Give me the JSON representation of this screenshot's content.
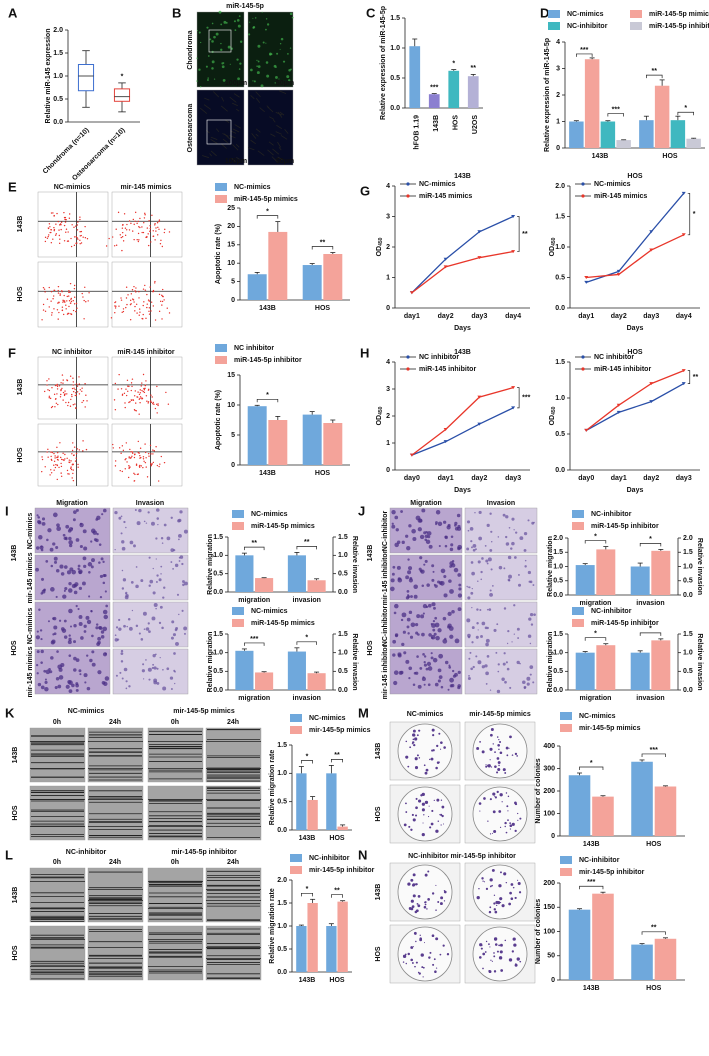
{
  "figure": {
    "panel_labels": [
      "A",
      "B",
      "C",
      "D",
      "E",
      "F",
      "G",
      "H",
      "I",
      "J",
      "K",
      "L",
      "M",
      "N"
    ],
    "image_labels": [
      "miR-145-5p",
      "Chondroma",
      "Osteosarcoma",
      "100μm",
      "50μm",
      "100μm",
      "50μm",
      "NC-mimics",
      "mir-145 mimics",
      "143B",
      "HOS",
      "NC inhibitor",
      "miR-145 inhibitor",
      "143B",
      "HOS",
      "Migration",
      "Invasion",
      "NC-mimics",
      "mir-145 mimics",
      "NC-mimics",
      "mir-145 mimics",
      "143B",
      "HOS",
      "Migration",
      "Invasion",
      "NC-inhibitor",
      "mir-145 inhibitor",
      "NC-inhibitor",
      "mir-145 inhibitor",
      "143B",
      "HOS",
      "NC-mimics",
      "mir-145-5p mimics",
      "0h",
      "24h",
      "0h",
      "24h",
      "143B",
      "HOS",
      "NC-inhibitor",
      "mir-145-5p inhibitor",
      "0h",
      "24h",
      "0h",
      "24h",
      "143B",
      "HOS",
      "NC-mimics",
      "mir-145-5p mimics",
      "143B",
      "HOS",
      "NC-inhibitor mir-145-5p inhibitor",
      "143B",
      "HOS"
    ]
  },
  "chart_data": [
    {
      "type": "box",
      "ylabel": "Relative miR-145 expression",
      "categories": [
        "Chondroma (n=10)",
        "Osteosarcoma (n=10)"
      ],
      "min": [
        0.32,
        0.22
      ],
      "q1": [
        0.68,
        0.45
      ],
      "median": [
        1.0,
        0.55
      ],
      "q3": [
        1.25,
        0.72
      ],
      "max": [
        1.55,
        0.85
      ],
      "colors": [
        "#3d6fcf",
        "#e3433b"
      ],
      "ylim": [
        0,
        2
      ],
      "yticks": [
        {
          "value": 0,
          "label": "0.0"
        },
        {
          "value": 0.5,
          "label": "0.5"
        },
        {
          "value": 1,
          "label": "1.0"
        },
        {
          "value": 1.5,
          "label": "1.5"
        },
        {
          "value": 2,
          "label": "2.0"
        }
      ],
      "annotations": [
        "*"
      ]
    },
    {
      "type": "bar",
      "ylabel": "Relative expression of miR-145-5p",
      "categories": [
        "hFOB 1.19",
        "143B",
        "HOS",
        "U2OS"
      ],
      "values": [
        1.03,
        0.23,
        0.62,
        0.53
      ],
      "errors": [
        0.12,
        0.01,
        0.02,
        0.03
      ],
      "colors": [
        "#6fa8dc",
        "#8b7fd0",
        "#3fb8c0",
        "#b4b1d6"
      ],
      "ylim": [
        0,
        1.5
      ],
      "yticks": [
        {
          "value": 0,
          "label": "0.0"
        },
        {
          "value": 0.5,
          "label": "0.5"
        },
        {
          "value": 1,
          "label": "1.0"
        },
        {
          "value": 1.5,
          "label": "1.5"
        }
      ],
      "annotations": [
        "***",
        "*",
        "**"
      ]
    },
    {
      "type": "bar",
      "ylabel": "Relative expression of miR-145-5p",
      "categories": [
        "143B",
        "HOS"
      ],
      "series": [
        {
          "name": "NC-mimics",
          "color": "#6fa8dc",
          "values": [
            1.0,
            1.05
          ],
          "errors": [
            0.03,
            0.15
          ]
        },
        {
          "name": "miR-145-5p mimics",
          "color": "#f4a39a",
          "values": [
            3.35,
            2.35
          ],
          "errors": [
            0.05,
            0.22
          ]
        },
        {
          "name": "NC-inhibitor",
          "color": "#3fb8c0",
          "values": [
            1.0,
            1.05
          ],
          "errors": [
            0.03,
            0.15
          ]
        },
        {
          "name": "miR-145-5p inhibitor",
          "color": "#c9c9d6",
          "values": [
            0.3,
            0.35
          ],
          "errors": [
            0.01,
            0.02
          ]
        }
      ],
      "ylim": [
        0,
        4
      ],
      "yticks": [
        0,
        1,
        2,
        3,
        4
      ],
      "annotations": [
        "***",
        "***",
        "**",
        "*"
      ]
    },
    {
      "type": "bar",
      "ylabel": "Apoptotic rate (%)",
      "categories": [
        "143B",
        "HOS"
      ],
      "series": [
        {
          "name": "NC-mimics",
          "color": "#6fa8dc",
          "values": [
            7.0,
            9.5
          ],
          "errors": [
            0.5,
            0.4
          ]
        },
        {
          "name": "miR-145-5p mimics",
          "color": "#f4a39a",
          "values": [
            18.5,
            12.5
          ],
          "errors": [
            2.8,
            0.4
          ]
        }
      ],
      "ylim": [
        0,
        25
      ],
      "yticks": [
        0,
        5,
        10,
        15,
        20,
        25
      ],
      "annotations": [
        "*",
        "**"
      ]
    },
    {
      "type": "bar",
      "ylabel": "Apoptotic rate (%)",
      "categories": [
        "143B",
        "HOS"
      ],
      "series": [
        {
          "name": "NC inhibitor",
          "color": "#6fa8dc",
          "values": [
            9.8,
            8.4
          ],
          "errors": [
            0.15,
            0.5
          ]
        },
        {
          "name": "miR-145-5p inhibitor",
          "color": "#f4a39a",
          "values": [
            7.5,
            7.0
          ],
          "errors": [
            0.6,
            0.5
          ]
        }
      ],
      "ylim": [
        0,
        15
      ],
      "yticks": [
        0,
        5,
        10,
        15
      ],
      "annotations": [
        "*"
      ]
    },
    {
      "type": "line",
      "title": "143B",
      "xlabel": "Days",
      "ylabel": "OD",
      "ylabel_sub": "450",
      "categories": [
        "day1",
        "day2",
        "day3",
        "day4"
      ],
      "series": [
        {
          "name": "NC-mimics",
          "color": "#2a4fa8",
          "values": [
            0.5,
            1.6,
            2.5,
            3.0
          ]
        },
        {
          "name": "miR-145 mimics",
          "color": "#e8362a",
          "values": [
            0.5,
            1.35,
            1.65,
            1.85
          ]
        }
      ],
      "ylim": [
        0,
        4
      ],
      "yticks": [
        0,
        1,
        2,
        3,
        4
      ],
      "annotations": [
        "**"
      ]
    },
    {
      "type": "line",
      "title": "HOS",
      "xlabel": "Days",
      "ylabel": "OD",
      "ylabel_sub": "450",
      "categories": [
        "day1",
        "day2",
        "day3",
        "day4"
      ],
      "series": [
        {
          "name": "NC-mimics",
          "color": "#2a4fa8",
          "values": [
            0.42,
            0.6,
            1.25,
            1.88
          ]
        },
        {
          "name": "miR-145 mimics",
          "color": "#e8362a",
          "values": [
            0.5,
            0.55,
            0.95,
            1.2
          ]
        }
      ],
      "ylim": [
        0,
        2
      ],
      "yticks": [
        {
          "value": 0,
          "label": "0.0"
        },
        {
          "value": 0.5,
          "label": "0.5"
        },
        {
          "value": 1,
          "label": "1.0"
        },
        {
          "value": 1.5,
          "label": "1.5"
        },
        {
          "value": 2,
          "label": "2.0"
        }
      ],
      "annotations": [
        "*"
      ]
    },
    {
      "type": "line",
      "title": "143B",
      "xlabel": "Days",
      "ylabel": "OD",
      "ylabel_sub": "450",
      "categories": [
        "day0",
        "day1",
        "day2",
        "day3"
      ],
      "series": [
        {
          "name": "NC inhibitor",
          "color": "#2a4fa8",
          "values": [
            0.55,
            1.05,
            1.7,
            2.3
          ]
        },
        {
          "name": "miR-145 inhibitor",
          "color": "#e8362a",
          "values": [
            0.55,
            1.5,
            2.7,
            3.05
          ]
        }
      ],
      "ylim": [
        0,
        4
      ],
      "yticks": [
        0,
        1,
        2,
        3,
        4
      ],
      "annotations": [
        "***"
      ]
    },
    {
      "type": "line",
      "title": "HOS",
      "xlabel": "Days",
      "ylabel": "OD",
      "ylabel_sub": "450",
      "categories": [
        "day0",
        "day1",
        "day2",
        "day3"
      ],
      "series": [
        {
          "name": "NC inhibitor",
          "color": "#2a4fa8",
          "values": [
            0.55,
            0.8,
            0.95,
            1.2
          ]
        },
        {
          "name": "miR-145 inhibitor",
          "color": "#e8362a",
          "values": [
            0.55,
            0.9,
            1.2,
            1.38
          ]
        }
      ],
      "ylim": [
        0,
        1.5
      ],
      "yticks": [
        {
          "value": 0,
          "label": "0.0"
        },
        {
          "value": 0.5,
          "label": "0.5"
        },
        {
          "value": 1,
          "label": "1.0"
        },
        {
          "value": 1.5,
          "label": "1.5"
        }
      ],
      "annotations": [
        "**"
      ]
    },
    {
      "type": "bar",
      "ylabel": "Relative migration",
      "y2label": "Relative invasion",
      "categories": [
        "migration",
        "invasion"
      ],
      "series": [
        {
          "name": "NC-mimics",
          "color": "#6fa8dc",
          "values": [
            1.0,
            1.0
          ],
          "errors": [
            0.06,
            0.08
          ]
        },
        {
          "name": "miR-145-5p mimics",
          "color": "#f4a39a",
          "values": [
            0.38,
            0.32
          ],
          "errors": [
            0.01,
            0.04
          ]
        }
      ],
      "ylim": [
        0,
        1.5
      ],
      "yticks": [
        {
          "value": 0,
          "label": "0.0"
        },
        {
          "value": 0.5,
          "label": "0.5"
        },
        {
          "value": 1,
          "label": "1.0"
        },
        {
          "value": 1.5,
          "label": "1.5"
        }
      ],
      "y2lim": [
        0,
        1.5
      ],
      "y2ticks": [
        {
          "value": 0,
          "label": "0.0"
        },
        {
          "value": 0.5,
          "label": "0.5"
        },
        {
          "value": 1,
          "label": "1.0"
        },
        {
          "value": 1.5,
          "label": "1.5"
        }
      ],
      "annotations": [
        "**",
        "**"
      ]
    },
    {
      "type": "bar",
      "ylabel": "Relative migration",
      "y2label": "Relative invasion",
      "categories": [
        "migration",
        "invasion"
      ],
      "series": [
        {
          "name": "NC-mimics",
          "color": "#6fa8dc",
          "values": [
            1.05,
            1.03
          ],
          "errors": [
            0.05,
            0.1
          ]
        },
        {
          "name": "miR-145-5p mimics",
          "color": "#f4a39a",
          "values": [
            0.47,
            0.45
          ],
          "errors": [
            0.02,
            0.03
          ]
        }
      ],
      "ylim": [
        0,
        1.5
      ],
      "yticks": [
        {
          "value": 0,
          "label": "0.0"
        },
        {
          "value": 0.5,
          "label": "0.5"
        },
        {
          "value": 1,
          "label": "1.0"
        },
        {
          "value": 1.5,
          "label": "1.5"
        }
      ],
      "y2lim": [
        0,
        1.5
      ],
      "y2ticks": [
        {
          "value": 0,
          "label": "0.0"
        },
        {
          "value": 0.5,
          "label": "0.5"
        },
        {
          "value": 1,
          "label": "1.0"
        },
        {
          "value": 1.5,
          "label": "1.5"
        }
      ],
      "annotations": [
        "***",
        "*"
      ]
    },
    {
      "type": "bar",
      "ylabel": "Relative migration",
      "y2label": "Relative invasion",
      "categories": [
        "migration",
        "invasion"
      ],
      "series": [
        {
          "name": "NC-inhibitor",
          "color": "#6fa8dc",
          "values": [
            1.05,
            1.0
          ],
          "errors": [
            0.05,
            0.12
          ]
        },
        {
          "name": "miR-145-5p inhibitor",
          "color": "#f4a39a",
          "values": [
            1.6,
            1.55
          ],
          "errors": [
            0.1,
            0.05
          ]
        }
      ],
      "ylim": [
        0,
        2
      ],
      "yticks": [
        {
          "value": 0,
          "label": "0.0"
        },
        {
          "value": 0.5,
          "label": "0.5"
        },
        {
          "value": 1,
          "label": "1.0"
        },
        {
          "value": 1.5,
          "label": "1.5"
        },
        {
          "value": 2,
          "label": "2.0"
        }
      ],
      "y2lim": [
        0,
        2
      ],
      "y2ticks": [
        {
          "value": 0,
          "label": "0.0"
        },
        {
          "value": 0.5,
          "label": "0.5"
        },
        {
          "value": 1,
          "label": "1.0"
        },
        {
          "value": 1.5,
          "label": "1.5"
        },
        {
          "value": 2,
          "label": "2.0"
        }
      ],
      "annotations": [
        "*",
        "*"
      ]
    },
    {
      "type": "bar",
      "ylabel": "Relative migration",
      "y2label": "Relative invasion",
      "categories": [
        "migration",
        "invasion"
      ],
      "series": [
        {
          "name": "NC-inhibitor",
          "color": "#6fa8dc",
          "values": [
            1.0,
            1.0
          ],
          "errors": [
            0.03,
            0.05
          ]
        },
        {
          "name": "miR-145-5p inhibitor",
          "color": "#f4a39a",
          "values": [
            1.2,
            1.33
          ],
          "errors": [
            0.04,
            0.04
          ]
        }
      ],
      "ylim": [
        0,
        1.5
      ],
      "yticks": [
        {
          "value": 0,
          "label": "0.0"
        },
        {
          "value": 0.5,
          "label": "0.5"
        },
        {
          "value": 1,
          "label": "1.0"
        },
        {
          "value": 1.5,
          "label": "1.5"
        }
      ],
      "y2lim": [
        0,
        1.5
      ],
      "y2ticks": [
        {
          "value": 0,
          "label": "0.0"
        },
        {
          "value": 0.5,
          "label": "0.5"
        },
        {
          "value": 1,
          "label": "1.0"
        },
        {
          "value": 1.5,
          "label": "1.5"
        }
      ],
      "annotations": [
        "*",
        "*"
      ]
    },
    {
      "type": "bar",
      "ylabel": "Relative migration rate",
      "categories": [
        "143B",
        "HOS"
      ],
      "series": [
        {
          "name": "NC-mimics",
          "color": "#6fa8dc",
          "values": [
            1.0,
            1.0
          ],
          "errors": [
            0.12,
            0.14
          ]
        },
        {
          "name": "mir-145-5p mimics",
          "color": "#f4a39a",
          "values": [
            0.53,
            0.06
          ],
          "errors": [
            0.06,
            0.03
          ]
        }
      ],
      "ylim": [
        0,
        1.5
      ],
      "yticks": [
        {
          "value": 0,
          "label": "0.0"
        },
        {
          "value": 0.5,
          "label": "0.5"
        },
        {
          "value": 1,
          "label": "1.0"
        },
        {
          "value": 1.5,
          "label": "1.5"
        }
      ],
      "annotations": [
        "*",
        "**"
      ]
    },
    {
      "type": "bar",
      "ylabel": "Relative migration rate",
      "categories": [
        "143B",
        "HOS"
      ],
      "series": [
        {
          "name": "NC-inhibitor",
          "color": "#6fa8dc",
          "values": [
            1.0,
            1.0
          ],
          "errors": [
            0.02,
            0.05
          ]
        },
        {
          "name": "mir-145-5p inhibitor",
          "color": "#f4a39a",
          "values": [
            1.5,
            1.53
          ],
          "errors": [
            0.08,
            0.02
          ]
        }
      ],
      "ylim": [
        0,
        2
      ],
      "yticks": [
        {
          "value": 0,
          "label": "0.0"
        },
        {
          "value": 0.5,
          "label": "0.5"
        },
        {
          "value": 1,
          "label": "1.0"
        },
        {
          "value": 1.5,
          "label": "1.5"
        },
        {
          "value": 2,
          "label": "2.0"
        }
      ],
      "annotations": [
        "*",
        "**"
      ]
    },
    {
      "type": "bar",
      "ylabel": "Number of colonies",
      "categories": [
        "143B",
        "HOS"
      ],
      "series": [
        {
          "name": "NC-mimics",
          "color": "#6fa8dc",
          "values": [
            270,
            330
          ],
          "errors": [
            10,
            8
          ]
        },
        {
          "name": "mir-145-5p mimics",
          "color": "#f4a39a",
          "values": [
            175,
            220
          ],
          "errors": [
            4,
            3
          ]
        }
      ],
      "ylim": [
        0,
        400
      ],
      "yticks": [
        0,
        100,
        200,
        300,
        400
      ],
      "annotations": [
        "*",
        "***"
      ]
    },
    {
      "type": "bar",
      "ylabel": "Number of colonies",
      "categories": [
        "143B",
        "HOS"
      ],
      "series": [
        {
          "name": "NC-inhibitor",
          "color": "#6fa8dc",
          "values": [
            145,
            73
          ],
          "errors": [
            2,
            2
          ]
        },
        {
          "name": "mir-145-5p inhibitor",
          "color": "#f4a39a",
          "values": [
            178,
            85
          ],
          "errors": [
            3,
            2
          ]
        }
      ],
      "ylim": [
        0,
        200
      ],
      "yticks": [
        0,
        50,
        100,
        150,
        200
      ],
      "annotations": [
        "***",
        "**"
      ]
    }
  ]
}
